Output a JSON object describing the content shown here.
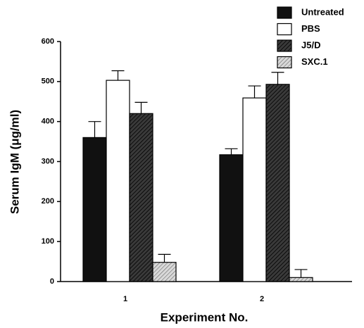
{
  "chart_data": {
    "type": "bar",
    "x_label": "Experiment No.",
    "y_label": "Serum IgM (μg/ml)",
    "categories": [
      "1",
      "2"
    ],
    "series": [
      {
        "name": "Untreated",
        "color": "#111111",
        "values": [
          360,
          317
        ],
        "errors": [
          40,
          15
        ]
      },
      {
        "name": "PBS",
        "color": "#ffffff",
        "values": [
          503,
          459
        ],
        "errors": [
          24,
          30
        ]
      },
      {
        "name": "J5/D",
        "color": "#3a3a3a",
        "values": [
          420,
          493
        ],
        "errors": [
          28,
          30
        ]
      },
      {
        "name": "SXC.1",
        "color": "#d8d8d8",
        "values": [
          48,
          10
        ],
        "errors": [
          20,
          20
        ]
      }
    ],
    "ylim": [
      0,
      600
    ],
    "yticks": [
      0,
      100,
      200,
      300,
      400,
      500,
      600
    ],
    "grid": false
  }
}
